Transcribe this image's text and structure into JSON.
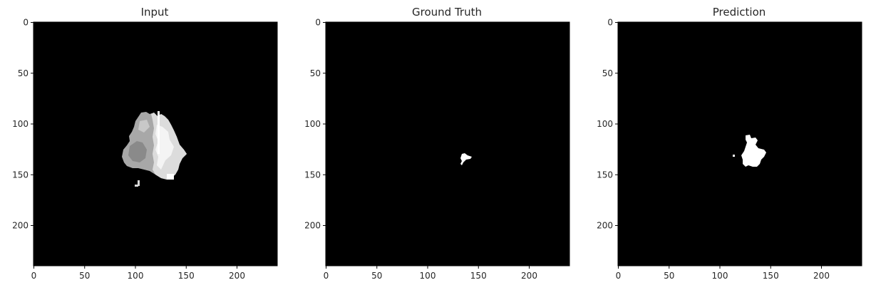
{
  "panels": [
    {
      "title": "Input"
    },
    {
      "title": "Ground Truth"
    },
    {
      "title": "Prediction"
    }
  ],
  "axes": {
    "x_ticks": [
      0,
      50,
      100,
      150,
      200
    ],
    "y_ticks": [
      0,
      50,
      100,
      150,
      200
    ],
    "extent": [
      0,
      240
    ]
  },
  "colors": {
    "background": "#ffffff",
    "image_black": "#000000",
    "mask_white": "#ffffff",
    "input_light": "#e8e8e8",
    "input_mid": "#a8a8a8",
    "text": "#262626"
  }
}
